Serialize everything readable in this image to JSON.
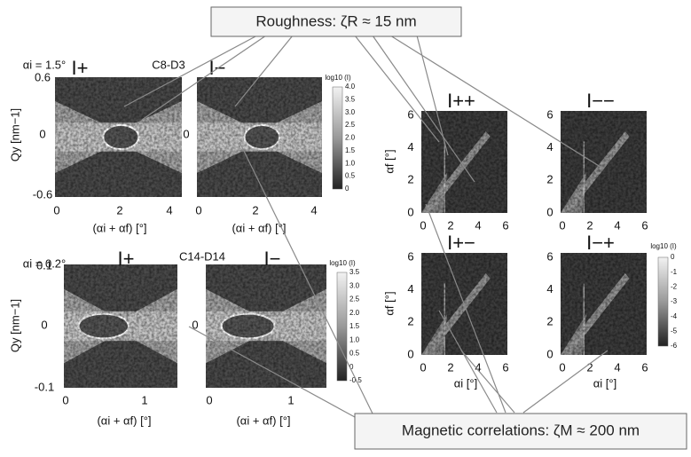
{
  "callouts": {
    "roughness": "Roughness: ζR ≈ 15 nm",
    "magnetic": "Magnetic correlations:  ζM ≈ 200 nm"
  },
  "top_group": {
    "angle": "αi = 1.5°",
    "sample": "C8-D3",
    "panels": [
      "I+",
      "I−"
    ],
    "y_label": "Qy [nm−1]",
    "x_label": "(αi + αf)  [°]",
    "y_ticks": [
      "0.6",
      "0",
      "-0.6"
    ],
    "x_ticks": [
      "0",
      "2",
      "4"
    ],
    "colorbar_label": "log10 (I)",
    "colorbar_ticks": [
      "4.0",
      "3.5",
      "3.0",
      "2.5",
      "2.0",
      "1.5",
      "1.0",
      "0.5",
      "0"
    ]
  },
  "bottom_group": {
    "angle": "αi = 0.2°",
    "sample": "C14-D14",
    "panels": [
      "I+",
      "I−"
    ],
    "y_label": "Qy [nm−1]",
    "x_label": "(αi + αf)  [°]",
    "y_ticks": [
      "0.1",
      "0",
      "-0.1"
    ],
    "x_ticks": [
      "0",
      "1"
    ],
    "colorbar_label": "log10 (I)",
    "colorbar_ticks": [
      "3.5",
      "3.0",
      "2.5",
      "2.0",
      "1.5",
      "1.0",
      "0.5",
      "0",
      "-0.5"
    ]
  },
  "polarized": {
    "panels": [
      "I++",
      "I−−",
      "I+−",
      "I−+"
    ],
    "y_label": "αf [°]",
    "x_label": "αi [°]",
    "y_ticks": [
      "0",
      "2",
      "4",
      "6"
    ],
    "x_ticks": [
      "0",
      "2",
      "4",
      "6"
    ],
    "colorbar_label": "log10 (I)",
    "colorbar_ticks": [
      "0",
      "-1",
      "-2",
      "-3",
      "-4",
      "-5",
      "-6"
    ]
  }
}
